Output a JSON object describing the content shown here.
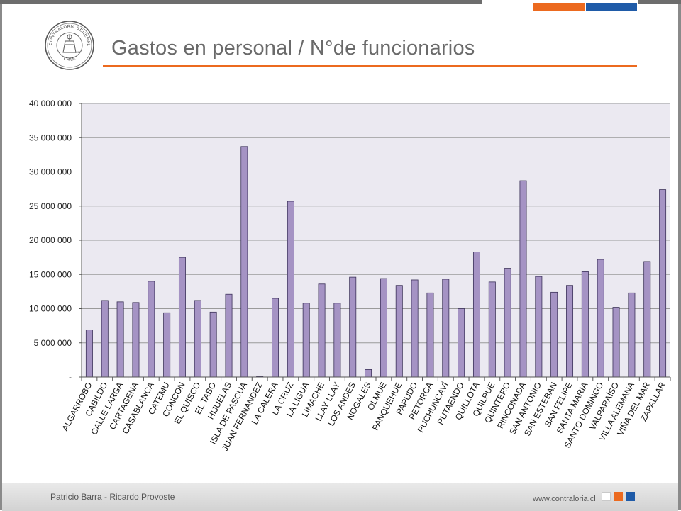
{
  "title": "Gastos en personal / N°de funcionarios",
  "logo": {
    "ring_text": "CONTRALORIA GENERAL DE LA REPUBLICA",
    "bottom_text": "CHILE",
    "year_text": "1927"
  },
  "colors": {
    "accent_orange": "#ec6a1f",
    "accent_blue": "#1f5ba8",
    "bar_fill": "#a593c4",
    "bar_stroke": "#3b3159",
    "plot_bg": "#ebe9f1",
    "gridline": "#9a9a9a"
  },
  "footer": {
    "authors": "Patricio Barra - Ricardo Provoste",
    "url": "www.contraloria.cl"
  },
  "chart_data": {
    "type": "bar",
    "title": "",
    "xlabel": "",
    "ylabel": "",
    "ylim": [
      0,
      40000000
    ],
    "yticks": [
      0,
      5000000,
      10000000,
      15000000,
      20000000,
      25000000,
      30000000,
      35000000,
      40000000
    ],
    "ytick_labels": [
      "-",
      "5 000 000",
      "10 000 000",
      "15 000 000",
      "20 000 000",
      "25 000 000",
      "30 000 000",
      "35 000 000",
      "40 000 000"
    ],
    "grid": true,
    "legend": "none",
    "categories": [
      "ALGARROBO",
      "CABILDO",
      "CALLE LARGA",
      "CARTAGENA",
      "CASABLANCA",
      "CATEMU",
      "CONCON",
      "EL QUISCO",
      "EL TABO",
      "HIJUELAS",
      "ISLA DE PASCUA",
      "JUAN FERNANDEZ",
      "LA CALERA",
      "LA CRUZ",
      "LA LIGUA",
      "LIMACHE",
      "LLAY LLAY",
      "LOS ANDES",
      "NOGALES",
      "OLMUE",
      "PANQUEHUE",
      "PAPUDO",
      "PETORCA",
      "PUCHUNCAVÍ",
      "PUTAENDO",
      "QUILLOTA",
      "QUILPUE",
      "QUINTERO",
      "RINCONADA",
      "SAN ANTONIO",
      "SAN ESTEBAN",
      "SAN FELIPE",
      "SANTA MARIA",
      "SANTO DOMINGO",
      "VALPARAÍSO",
      "VILLA ALEMANA",
      "VIÑA DEL MAR",
      "ZAPALLAR"
    ],
    "values": [
      6900000,
      11200000,
      11000000,
      10900000,
      14000000,
      9400000,
      17500000,
      11200000,
      9500000,
      12100000,
      33700000,
      100000,
      11500000,
      25700000,
      10800000,
      13600000,
      10800000,
      14600000,
      1100000,
      14400000,
      13400000,
      14200000,
      12300000,
      14300000,
      10000000,
      18300000,
      13900000,
      15900000,
      28700000,
      14700000,
      12400000,
      13400000,
      15400000,
      17200000,
      10200000,
      12300000,
      16900000,
      27400000
    ]
  }
}
